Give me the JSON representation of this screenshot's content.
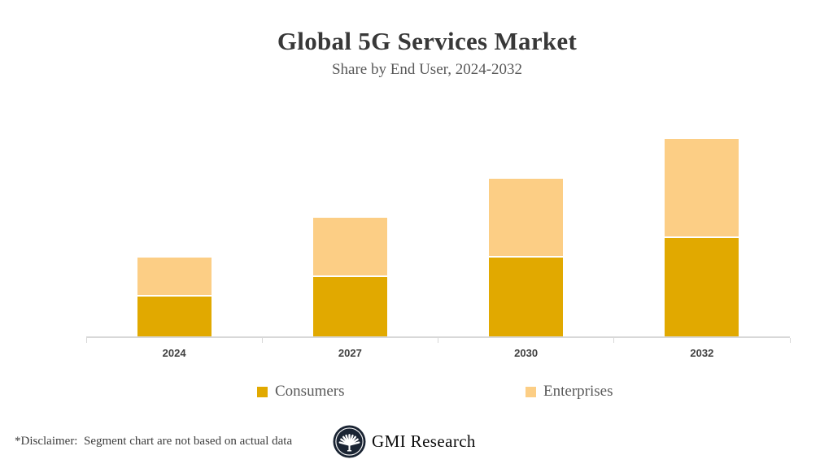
{
  "header": {
    "title": "Global 5G Services Market",
    "subtitle": "Share by End User, 2024-2032"
  },
  "chart_data": {
    "type": "bar",
    "stacked": true,
    "categories": [
      "2024",
      "2027",
      "2030",
      "2032"
    ],
    "series": [
      {
        "name": "Consumers",
        "color": "#E1A900",
        "values": [
          1.0,
          1.5,
          2.0,
          2.5
        ]
      },
      {
        "name": "Enterprises",
        "color": "#FCCE85",
        "values": [
          1.0,
          1.5,
          2.0,
          2.5
        ]
      }
    ],
    "title": "Global 5G Services Market",
    "subtitle": "Share by End User, 2024-2032",
    "xlabel": "",
    "ylabel": "",
    "ylim": [
      0,
      5.6
    ],
    "grid": false,
    "y_axis_shown": false,
    "legend_position": "bottom"
  },
  "footer": {
    "disclaimer": "*Disclaimer:  Segment chart are not based on actual data",
    "brand": "GMI Research"
  },
  "colors": {
    "title": "#383838",
    "subtitle": "#595959",
    "axis": "#D8D8D8",
    "tick_label": "#404040",
    "logo_navy": "#1A2433"
  }
}
